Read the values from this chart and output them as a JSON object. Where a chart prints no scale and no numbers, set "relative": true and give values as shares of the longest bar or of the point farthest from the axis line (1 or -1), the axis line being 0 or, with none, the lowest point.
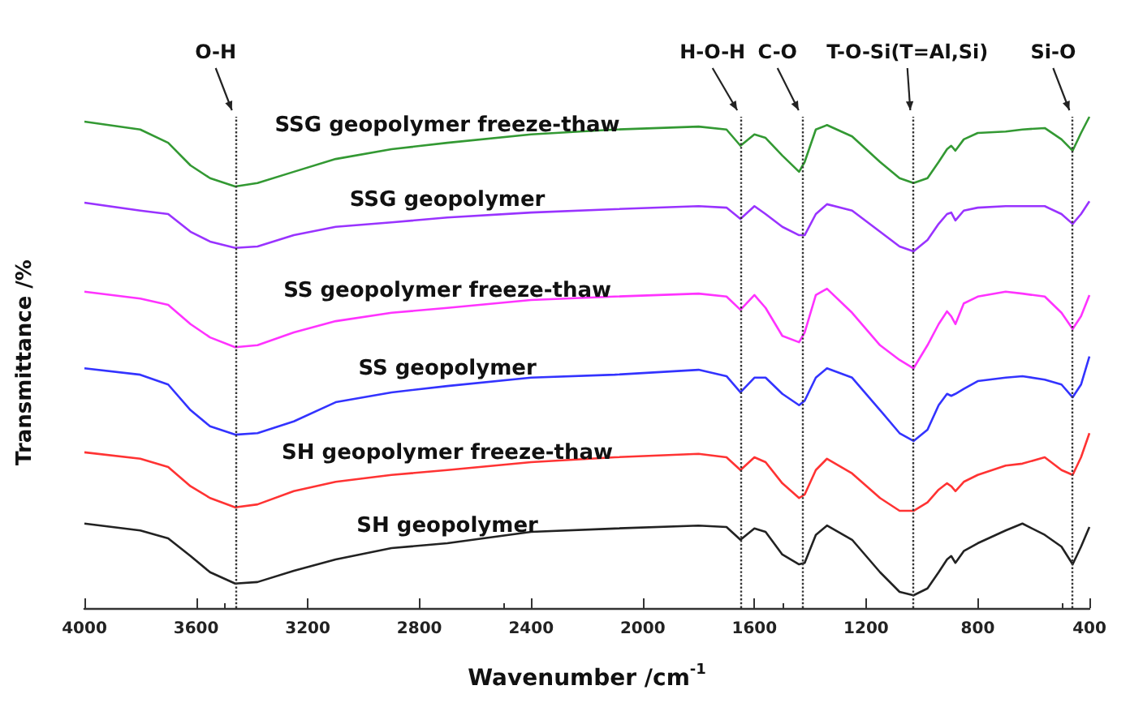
{
  "chart_data": {
    "type": "line",
    "xlabel": "Wavenumber /cm$^{-1}$",
    "ylabel": "Transmittance /%",
    "relative": true,
    "x": [
      4000,
      3800,
      3700,
      3620,
      3550,
      3460,
      3380,
      3250,
      3100,
      2900,
      2700,
      2400,
      2100,
      1800,
      1700,
      1650,
      1600,
      1560,
      1500,
      1440,
      1420,
      1380,
      1340,
      1250,
      1150,
      1080,
      1030,
      980,
      940,
      910,
      895,
      880,
      850,
      800,
      700,
      640,
      560,
      500,
      460,
      430,
      400
    ],
    "xlim": [
      4000,
      400
    ],
    "xticks": [
      4000,
      3600,
      3200,
      2800,
      2400,
      2000,
      1600,
      1200,
      800,
      400
    ],
    "series": [
      {
        "name": "SSG geopolymer freeze-thaw",
        "color": "#339933",
        "values": [
          0.99,
          0.974,
          0.947,
          0.901,
          0.875,
          0.858,
          0.865,
          0.888,
          0.914,
          0.934,
          0.947,
          0.964,
          0.974,
          0.98,
          0.974,
          0.941,
          0.964,
          0.957,
          0.921,
          0.888,
          0.908,
          0.974,
          0.983,
          0.96,
          0.908,
          0.875,
          0.865,
          0.875,
          0.908,
          0.934,
          0.941,
          0.931,
          0.954,
          0.967,
          0.97,
          0.974,
          0.977,
          0.954,
          0.931,
          0.967,
          1
        ]
      },
      {
        "name": "SSG geopolymer",
        "color": "#9933ff",
        "values": [
          0.825,
          0.809,
          0.802,
          0.766,
          0.746,
          0.733,
          0.736,
          0.759,
          0.776,
          0.785,
          0.795,
          0.805,
          0.812,
          0.818,
          0.815,
          0.792,
          0.818,
          0.802,
          0.776,
          0.759,
          0.759,
          0.802,
          0.822,
          0.809,
          0.766,
          0.736,
          0.726,
          0.749,
          0.782,
          0.802,
          0.805,
          0.789,
          0.809,
          0.815,
          0.818,
          0.818,
          0.818,
          0.802,
          0.782,
          0.802,
          0.828
        ]
      },
      {
        "name": "SS geopolymer freeze-thaw",
        "color": "#ff33ff",
        "values": [
          0.644,
          0.63,
          0.617,
          0.578,
          0.551,
          0.531,
          0.535,
          0.561,
          0.584,
          0.601,
          0.611,
          0.627,
          0.634,
          0.64,
          0.634,
          0.607,
          0.637,
          0.611,
          0.554,
          0.541,
          0.561,
          0.637,
          0.65,
          0.601,
          0.535,
          0.505,
          0.488,
          0.535,
          0.578,
          0.604,
          0.594,
          0.578,
          0.62,
          0.634,
          0.644,
          0.64,
          0.634,
          0.601,
          0.568,
          0.594,
          0.637
        ]
      },
      {
        "name": "SS geopolymer",
        "color": "#3333ff",
        "values": [
          0.488,
          0.475,
          0.455,
          0.403,
          0.37,
          0.353,
          0.356,
          0.38,
          0.419,
          0.439,
          0.452,
          0.469,
          0.475,
          0.485,
          0.472,
          0.439,
          0.469,
          0.469,
          0.436,
          0.413,
          0.422,
          0.469,
          0.488,
          0.469,
          0.403,
          0.356,
          0.34,
          0.363,
          0.413,
          0.436,
          0.432,
          0.436,
          0.446,
          0.462,
          0.469,
          0.472,
          0.465,
          0.455,
          0.429,
          0.455,
          0.512
        ]
      },
      {
        "name": "SH geopolymer freeze-thaw",
        "color": "#ff3333",
        "values": [
          0.317,
          0.304,
          0.287,
          0.248,
          0.224,
          0.205,
          0.211,
          0.238,
          0.257,
          0.271,
          0.281,
          0.297,
          0.307,
          0.314,
          0.307,
          0.281,
          0.307,
          0.297,
          0.254,
          0.224,
          0.231,
          0.281,
          0.304,
          0.274,
          0.224,
          0.198,
          0.198,
          0.215,
          0.241,
          0.254,
          0.248,
          0.238,
          0.257,
          0.271,
          0.29,
          0.294,
          0.307,
          0.281,
          0.271,
          0.307,
          0.356
        ]
      },
      {
        "name": "SH geopolymer",
        "color": "#222222",
        "values": [
          0.172,
          0.158,
          0.142,
          0.106,
          0.073,
          0.05,
          0.053,
          0.076,
          0.099,
          0.122,
          0.132,
          0.155,
          0.162,
          0.168,
          0.165,
          0.139,
          0.162,
          0.155,
          0.109,
          0.089,
          0.092,
          0.149,
          0.168,
          0.139,
          0.073,
          0.033,
          0.026,
          0.04,
          0.073,
          0.099,
          0.106,
          0.092,
          0.116,
          0.132,
          0.158,
          0.172,
          0.149,
          0.125,
          0.089,
          0.125,
          0.165
        ]
      }
    ],
    "ref_lines": [
      {
        "axis": "x",
        "value": 3460,
        "label": "O-H",
        "color": "#333333",
        "line_style": "dotted"
      },
      {
        "axis": "x",
        "value": 1650,
        "label": "H-O-H",
        "color": "#333333",
        "line_style": "dotted"
      },
      {
        "axis": "x",
        "value": 1430,
        "label": "C-O",
        "color": "#333333",
        "line_style": "dotted"
      },
      {
        "axis": "x",
        "value": 1030,
        "label": "T-O-Si(T=Al,Si)",
        "color": "#333333",
        "line_style": "dotted"
      },
      {
        "axis": "x",
        "value": 460,
        "label": "Si-O",
        "color": "#333333",
        "line_style": "dotted"
      }
    ]
  }
}
